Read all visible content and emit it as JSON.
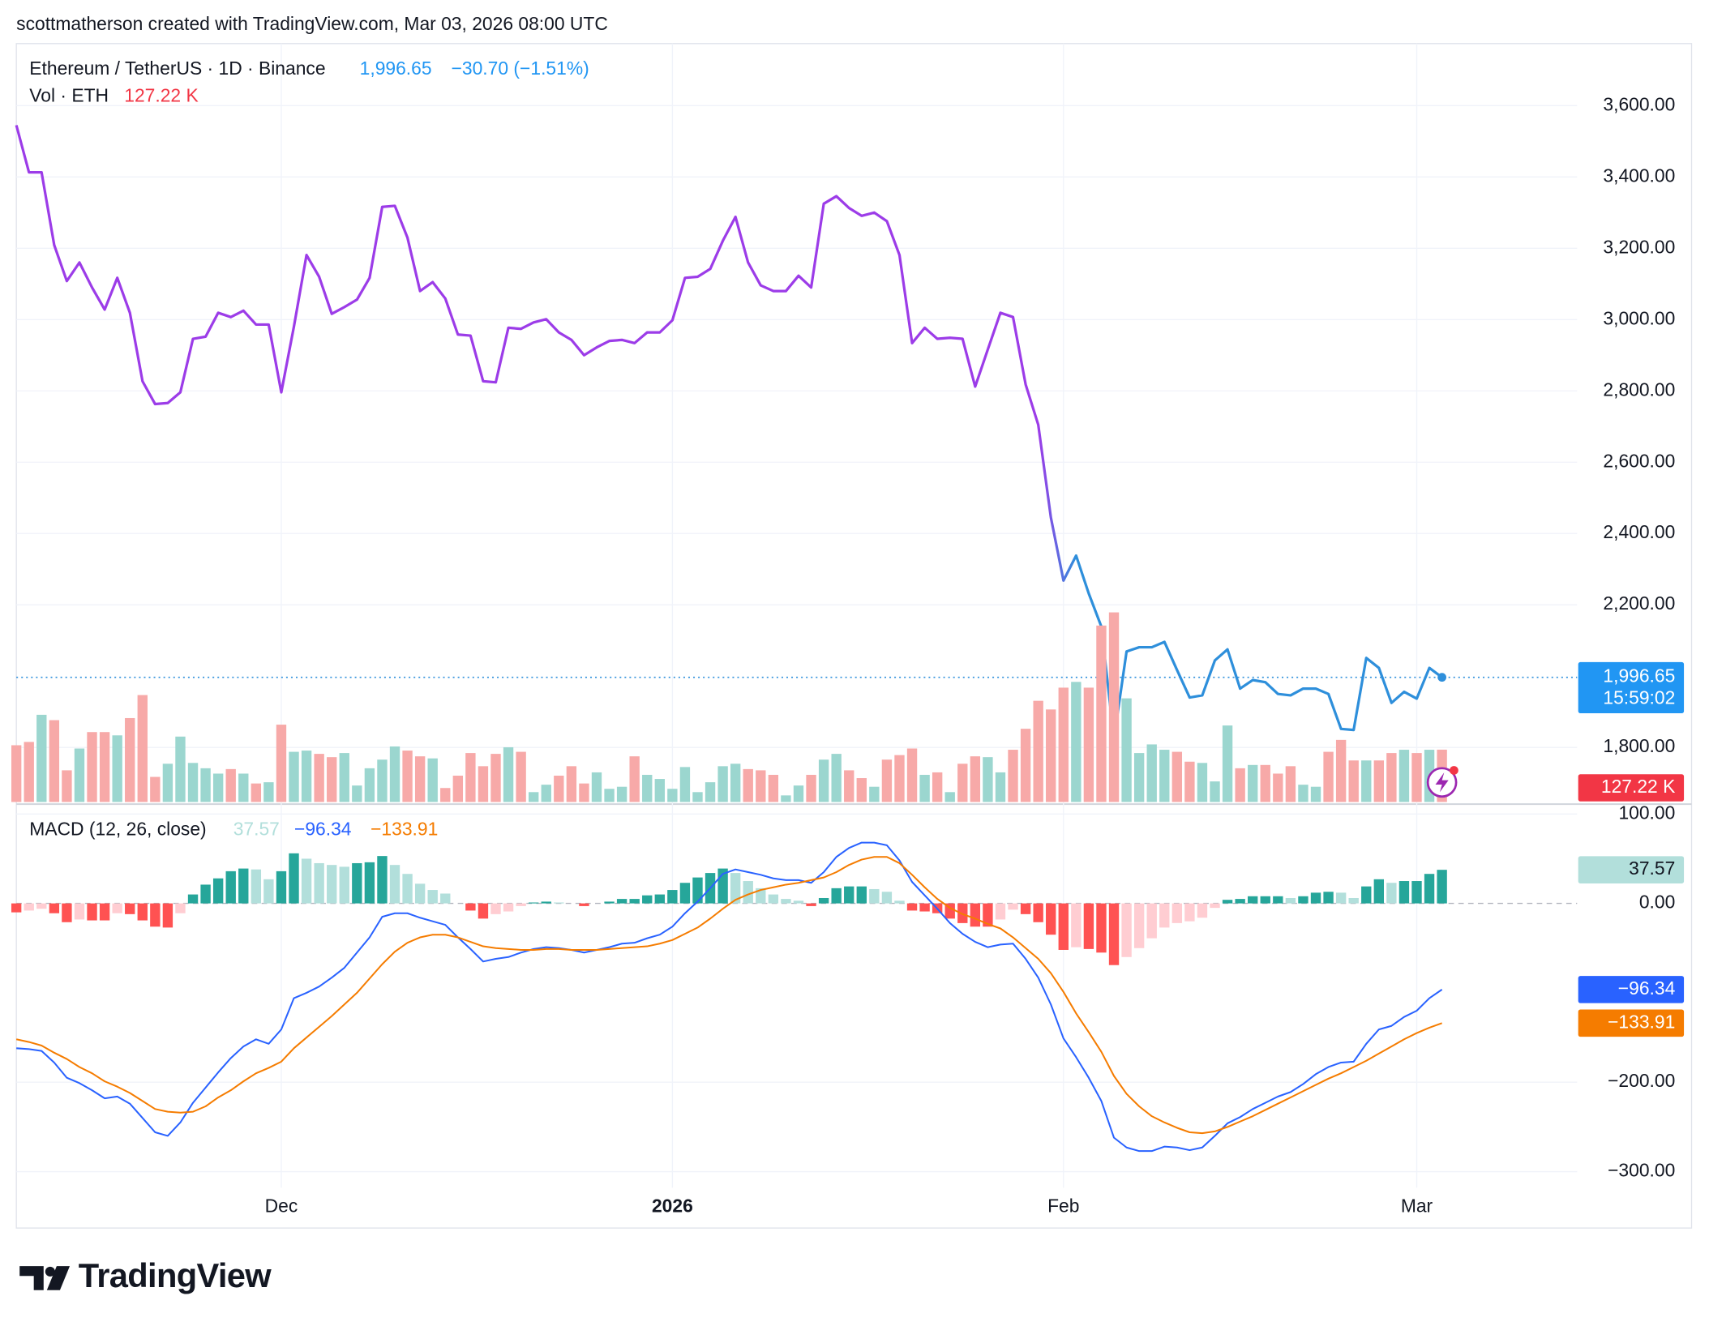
{
  "header": {
    "attribution": "scottmatherson created with TradingView.com, Mar 03, 2026 08:00 UTC"
  },
  "chart_data": [
    {
      "type": "line",
      "title": "Ethereum / TetherUS · 1D · Binance",
      "last_label": "1,996.65",
      "change_label": "−30.70 (−1.51%)",
      "countdown": "15:59:02",
      "categories": [
        null,
        null,
        null,
        null,
        null,
        null,
        null,
        null,
        null,
        null,
        null,
        null,
        null,
        null,
        null,
        null,
        null,
        null,
        null,
        null,
        null,
        "Dec",
        null,
        null,
        null,
        null,
        null,
        null,
        null,
        null,
        null,
        null,
        null,
        null,
        null,
        null,
        null,
        null,
        null,
        null,
        null,
        null,
        null,
        null,
        null,
        null,
        null,
        null,
        null,
        null,
        null,
        null,
        "2026",
        null,
        null,
        null,
        null,
        null,
        null,
        null,
        null,
        null,
        null,
        null,
        null,
        null,
        null,
        null,
        null,
        null,
        null,
        null,
        null,
        null,
        null,
        null,
        null,
        null,
        null,
        null,
        null,
        null,
        null,
        "Feb",
        null,
        null,
        null,
        null,
        null,
        null,
        null,
        null,
        null,
        null,
        null,
        null,
        null,
        null,
        null,
        null,
        null,
        null,
        null,
        null,
        null,
        null,
        null,
        null,
        null,
        null,
        null,
        "Mar",
        null,
        null
      ],
      "values": [
        3545,
        3413,
        3413,
        3209,
        3108,
        3160,
        3090,
        3028,
        3117,
        3019,
        2827,
        2763,
        2766,
        2796,
        2946,
        2952,
        3019,
        3007,
        3025,
        2986,
        2986,
        2796,
        2980,
        3181,
        3120,
        3016,
        3035,
        3056,
        3117,
        3316,
        3319,
        3230,
        3080,
        3105,
        3059,
        2958,
        2955,
        2827,
        2824,
        2977,
        2974,
        2992,
        3001,
        2964,
        2943,
        2900,
        2922,
        2940,
        2943,
        2934,
        2964,
        2964,
        2998,
        3117,
        3120,
        3142,
        3221,
        3288,
        3160,
        3096,
        3080,
        3080,
        3123,
        3090,
        3325,
        3346,
        3313,
        3291,
        3300,
        3276,
        3181,
        2934,
        2977,
        2946,
        2949,
        2946,
        2812,
        2916,
        3019,
        3007,
        2818,
        2705,
        2445,
        2268,
        2338,
        2232,
        2139,
        1824,
        2069,
        2081,
        2081,
        2096,
        2017,
        1940,
        1946,
        2044,
        2075,
        1965,
        1989,
        1983,
        1950,
        1946,
        1965,
        1965,
        1950,
        1852,
        1849,
        2051,
        2023,
        1925,
        1956,
        1937,
        2023,
        1996.65
      ],
      "colors": [
        "#9c3ce8",
        "#2e8fdb"
      ],
      "ylim": [
        1647,
        3774
      ],
      "yticks": [
        {
          "value": 1800,
          "label": "1,800.00"
        },
        {
          "value": 2200,
          "label": "2,200.00"
        },
        {
          "value": 2400,
          "label": "2,400.00"
        },
        {
          "value": 2600,
          "label": "2,600.00"
        },
        {
          "value": 2800,
          "label": "2,800.00"
        },
        {
          "value": 3000,
          "label": "3,000.00"
        },
        {
          "value": 3200,
          "label": "3,200.00"
        },
        {
          "value": 3400,
          "label": "3,400.00"
        },
        {
          "value": 3600,
          "label": "3,600.00"
        }
      ],
      "grid": true
    },
    {
      "type": "bar",
      "title": "Vol · ETH",
      "last_label": "127.22 K",
      "values": [
        138,
        146,
        212,
        199,
        77,
        130,
        170,
        170,
        162,
        204,
        260,
        61,
        93,
        159,
        95,
        82,
        69,
        80,
        69,
        45,
        48,
        188,
        122,
        125,
        117,
        109,
        119,
        40,
        82,
        103,
        135,
        125,
        111,
        106,
        34,
        64,
        119,
        87,
        117,
        133,
        122,
        24,
        42,
        64,
        87,
        45,
        72,
        32,
        37,
        111,
        66,
        56,
        32,
        85,
        24,
        48,
        87,
        93,
        80,
        77,
        66,
        16,
        40,
        66,
        103,
        117,
        77,
        58,
        37,
        103,
        114,
        130,
        66,
        72,
        24,
        93,
        111,
        109,
        72,
        127,
        178,
        246,
        225,
        278,
        292,
        278,
        429,
        461,
        252,
        119,
        140,
        127,
        122,
        98,
        95,
        50,
        186,
        82,
        90,
        90,
        69,
        87,
        42,
        37,
        122,
        151,
        101,
        101,
        101,
        119,
        127,
        119,
        127,
        127.22
      ],
      "up_color": "#9bd6cf",
      "down_color": "#f7a9a8",
      "label_color": "#f23645"
    },
    {
      "type": "macd",
      "title": "MACD (12, 26, close)",
      "histogram_label": "37.57",
      "macd_label": "−96.34",
      "signal_label": "−133.91",
      "histogram": [
        -10,
        -8,
        -6,
        -11,
        -21,
        -18,
        -19,
        -19,
        -11,
        -12,
        -19,
        -26,
        -27,
        -11,
        10,
        21,
        28,
        36,
        39,
        38,
        27,
        36,
        56,
        50,
        45,
        43,
        41,
        45,
        46,
        53,
        43,
        33,
        22,
        15,
        11,
        0,
        -8,
        -17,
        -12,
        -9,
        -3,
        1,
        2,
        1,
        0,
        -3,
        0,
        2,
        5,
        5,
        9,
        10,
        15,
        23,
        29,
        34,
        39,
        34,
        25,
        17,
        10,
        5,
        3,
        -3,
        6,
        17,
        19,
        19,
        16,
        13,
        3,
        -8,
        -9,
        -11,
        -17,
        -22,
        -26,
        -26,
        -18,
        -7,
        -12,
        -21,
        -35,
        -52,
        -49,
        -51,
        -55,
        -69,
        -60,
        -50,
        -39,
        -27,
        -22,
        -20,
        -16,
        -5,
        4,
        5,
        8,
        8,
        8,
        6,
        8,
        12,
        13,
        12,
        6,
        19,
        27,
        23,
        25,
        25,
        33,
        37.57
      ],
      "macd": [
        -162,
        -163,
        -165,
        -178,
        -195,
        -201,
        -209,
        -218,
        -216,
        -224,
        -240,
        -256,
        -260,
        -245,
        -223,
        -206,
        -189,
        -173,
        -160,
        -152,
        -157,
        -141,
        -106,
        -100,
        -93,
        -83,
        -72,
        -55,
        -38,
        -15,
        -11,
        -11,
        -16,
        -20,
        -24,
        -38,
        -51,
        -65,
        -62,
        -60,
        -55,
        -51,
        -49,
        -50,
        -52,
        -55,
        -52,
        -49,
        -45,
        -44,
        -39,
        -35,
        -26,
        -11,
        2,
        17,
        33,
        38,
        35,
        32,
        28,
        26,
        26,
        23,
        35,
        52,
        62,
        68,
        68,
        65,
        48,
        24,
        9,
        -6,
        -22,
        -34,
        -43,
        -49,
        -46,
        -45,
        -62,
        -83,
        -113,
        -151,
        -172,
        -195,
        -221,
        -262,
        -273,
        -277,
        -277,
        -272,
        -273,
        -276,
        -273,
        -260,
        -246,
        -239,
        -230,
        -223,
        -216,
        -211,
        -202,
        -191,
        -183,
        -178,
        -177,
        -157,
        -141,
        -137,
        -127,
        -120,
        -106,
        -96.34
      ],
      "signal": [
        -152,
        -155,
        -159,
        -167,
        -174,
        -183,
        -190,
        -199,
        -205,
        -212,
        -221,
        -230,
        -233,
        -234,
        -233,
        -227,
        -217,
        -209,
        -199,
        -190,
        -184,
        -177,
        -162,
        -150,
        -138,
        -126,
        -113,
        -100,
        -84,
        -68,
        -54,
        -44,
        -38,
        -35,
        -35,
        -38,
        -43,
        -48,
        -50,
        -51,
        -52,
        -52,
        -51,
        -51,
        -52,
        -52,
        -52,
        -51,
        -50,
        -49,
        -48,
        -45,
        -41,
        -34,
        -27,
        -17,
        -6,
        4,
        10,
        15,
        18,
        21,
        23,
        26,
        29,
        35,
        43,
        49,
        52,
        52,
        45,
        32,
        18,
        5,
        -5,
        -12,
        -17,
        -23,
        -28,
        -38,
        -50,
        -62,
        -78,
        -99,
        -123,
        -144,
        -166,
        -193,
        -213,
        -227,
        -238,
        -245,
        -251,
        -256,
        -257,
        -255,
        -250,
        -244,
        -238,
        -231,
        -224,
        -217,
        -210,
        -203,
        -196,
        -190,
        -183,
        -176,
        -168,
        -160,
        -152,
        -145,
        -139,
        -133.91
      ],
      "histogram_colors": {
        "up_rising": "#26a69a",
        "up_falling": "#b2dfdb",
        "down_falling": "#ff5252",
        "down_rising": "#ffcdd2"
      },
      "macd_color": "#2962ff",
      "signal_color": "#f57c00",
      "ylim": [
        -318,
        111
      ],
      "yticks": [
        {
          "value": -300,
          "label": "−300.00"
        },
        {
          "value": -200,
          "label": "−200.00"
        },
        {
          "value": 0,
          "label": "0.00"
        },
        {
          "value": 100,
          "label": "100.00"
        }
      ],
      "grid": true
    }
  ],
  "footer": {
    "brand": "TradingView"
  }
}
